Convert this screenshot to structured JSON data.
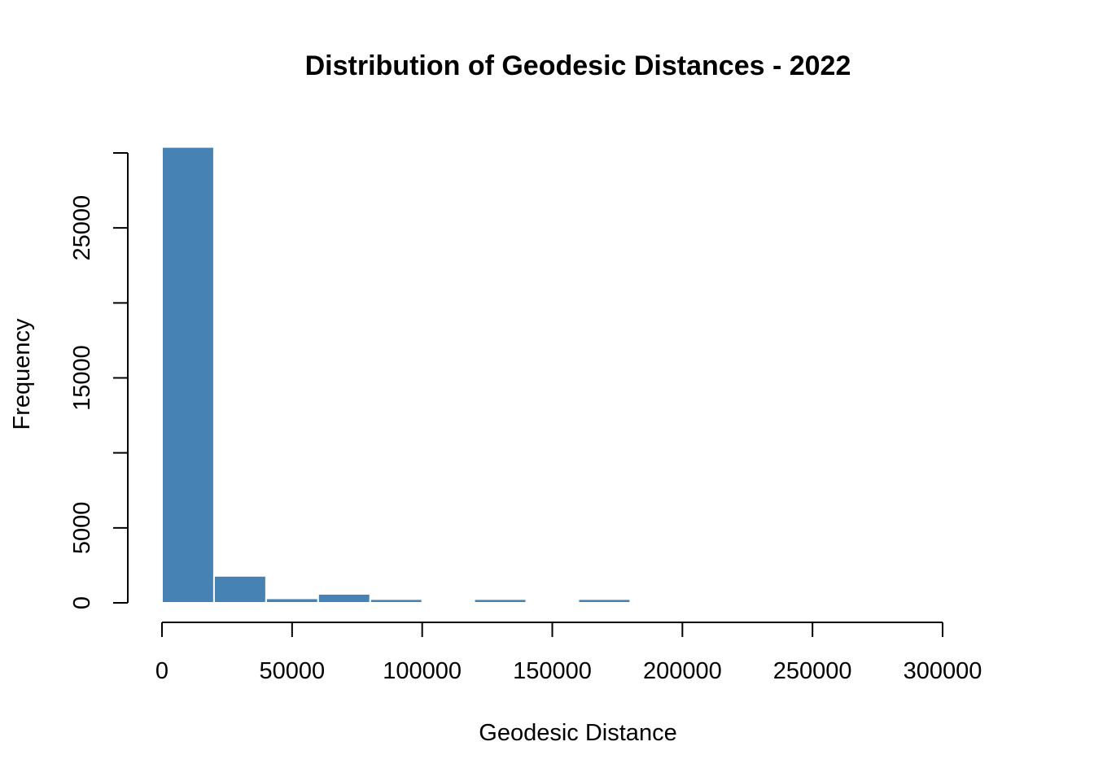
{
  "chart_data": {
    "type": "bar",
    "title": "Distribution of Geodesic Distances - 2022",
    "xlabel": "Geodesic Distance",
    "ylabel": "Frequency",
    "bin_width": 20000,
    "bins": [
      {
        "start": 0,
        "end": 20000,
        "value": 30400
      },
      {
        "start": 20000,
        "end": 40000,
        "value": 1800
      },
      {
        "start": 40000,
        "end": 60000,
        "value": 300
      },
      {
        "start": 60000,
        "end": 80000,
        "value": 600
      },
      {
        "start": 80000,
        "end": 100000,
        "value": 250
      },
      {
        "start": 100000,
        "end": 120000,
        "value": 0
      },
      {
        "start": 120000,
        "end": 140000,
        "value": 250
      },
      {
        "start": 140000,
        "end": 160000,
        "value": 0
      },
      {
        "start": 160000,
        "end": 180000,
        "value": 250
      }
    ],
    "xlim": [
      0,
      300000
    ],
    "ylim": [
      0,
      30000
    ],
    "x_ticks": [
      0,
      50000,
      100000,
      150000,
      200000,
      250000,
      300000
    ],
    "x_tick_labels": [
      "0",
      "50000",
      "100000",
      "150000",
      "200000",
      "250000",
      "300000"
    ],
    "y_ticks": [
      0,
      5000,
      10000,
      15000,
      20000,
      25000,
      30000
    ],
    "y_tick_labels": [
      "0",
      "5000",
      "",
      "15000",
      "",
      "25000",
      ""
    ],
    "grid": false,
    "bar_color": "#4682b4"
  }
}
